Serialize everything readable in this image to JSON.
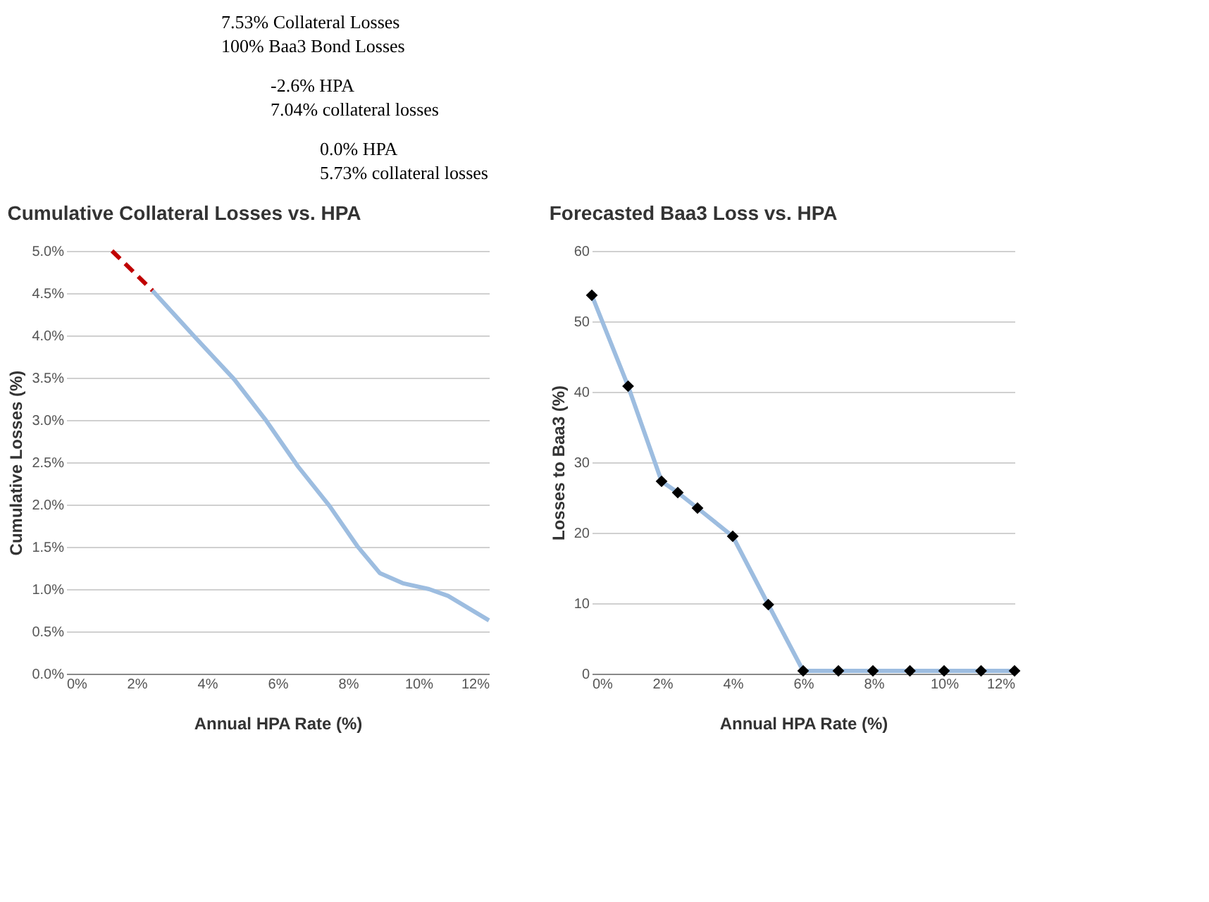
{
  "chart_data": [
    {
      "type": "line",
      "title": "Cumulative Collateral Losses vs. HPA",
      "xlabel": "Annual HPA Rate (%)",
      "ylabel": "Cumulative Losses (%)",
      "annotations": [
        "7.53% Collateral Losses\n100% Baa3 Bond Losses",
        "-2.6% HPA\n7.04% collateral losses",
        "0.0% HPA\n5.73% collateral losses"
      ],
      "xlim": [
        0,
        12
      ],
      "xticks": [
        {
          "value": 0,
          "label": "0%"
        },
        {
          "value": 2,
          "label": "2%"
        },
        {
          "value": 4,
          "label": "4%"
        },
        {
          "value": 6,
          "label": "6%"
        },
        {
          "value": 8,
          "label": "8%"
        },
        {
          "value": 10,
          "label": "10%"
        },
        {
          "value": 12,
          "label": "12%"
        }
      ],
      "ylim": [
        0,
        5
      ],
      "yticks": [
        {
          "value": 0,
          "label": "0.0%"
        },
        {
          "value": 0.5,
          "label": "0.5%"
        },
        {
          "value": 1,
          "label": "1.0%"
        },
        {
          "value": 1.5,
          "label": "1.5%"
        },
        {
          "value": 2,
          "label": "2.0%"
        },
        {
          "value": 2.5,
          "label": "2.5%"
        },
        {
          "value": 3,
          "label": "3.0%"
        },
        {
          "value": 3.5,
          "label": "3.5%"
        },
        {
          "value": 4,
          "label": "4.0%"
        },
        {
          "value": 4.5,
          "label": "4.5%"
        },
        {
          "value": 5,
          "label": "5.0%"
        }
      ],
      "grid": "y",
      "series": [
        {
          "color": "#9dbde0",
          "marker": "none",
          "line_style": "solid",
          "x": [
            2.45,
            3.61,
            4.77,
            5.68,
            6.58,
            7.48,
            8.26,
            8.9,
            9.55,
            10.3,
            10.84,
            12.0
          ],
          "values": [
            4.53,
            4.0,
            3.48,
            2.99,
            2.45,
            1.98,
            1.51,
            1.19,
            1.07,
            1.0,
            0.92,
            0.63
          ]
        },
        {
          "color": "#c00000",
          "marker": "none",
          "line_style": "dashed",
          "x": [
            1.3,
            2.45
          ],
          "values": [
            5.0,
            4.53
          ]
        }
      ]
    },
    {
      "type": "line",
      "title": "Forecasted Baa3 Loss vs. HPA",
      "xlabel": "Annual HPA Rate (%)",
      "ylabel": "Losses to Baa3 (%)",
      "xlim": [
        0,
        12
      ],
      "xticks": [
        {
          "value": 0,
          "label": "0%"
        },
        {
          "value": 2,
          "label": "2%"
        },
        {
          "value": 4,
          "label": "4%"
        },
        {
          "value": 6,
          "label": "6%"
        },
        {
          "value": 8,
          "label": "8%"
        },
        {
          "value": 10,
          "label": "10%"
        },
        {
          "value": 12,
          "label": "12%"
        }
      ],
      "ylim": [
        0,
        60
      ],
      "yticks": [
        0,
        10,
        20,
        30,
        40,
        50,
        60
      ],
      "grid": "y",
      "series": [
        {
          "color": "#9dbde0",
          "marker": "none",
          "line_style": "solid",
          "x": [
            0,
            1.03,
            1.98,
            2.44,
            3.0,
            4.0,
            5.01,
            6.0,
            7.0,
            7.98,
            9.03,
            10.0,
            11.05,
            12.0
          ],
          "values": [
            53.7,
            40.8,
            27.3,
            25.7,
            23.5,
            19.5,
            9.8,
            0.4,
            0.4,
            0.4,
            0.4,
            0.4,
            0.4,
            0.4
          ]
        },
        {
          "type": "scatter",
          "color": "#000000",
          "marker": "diamond",
          "x": [
            0,
            1.03,
            1.98,
            2.44,
            3.0,
            4.0,
            5.01,
            6.0,
            7.0,
            7.98,
            9.03,
            10.0,
            11.05,
            12.0
          ],
          "values": [
            53.7,
            40.8,
            27.3,
            25.7,
            23.5,
            19.5,
            9.8,
            0.4,
            0.4,
            0.4,
            0.4,
            0.4,
            0.4,
            0.4
          ]
        }
      ]
    }
  ]
}
